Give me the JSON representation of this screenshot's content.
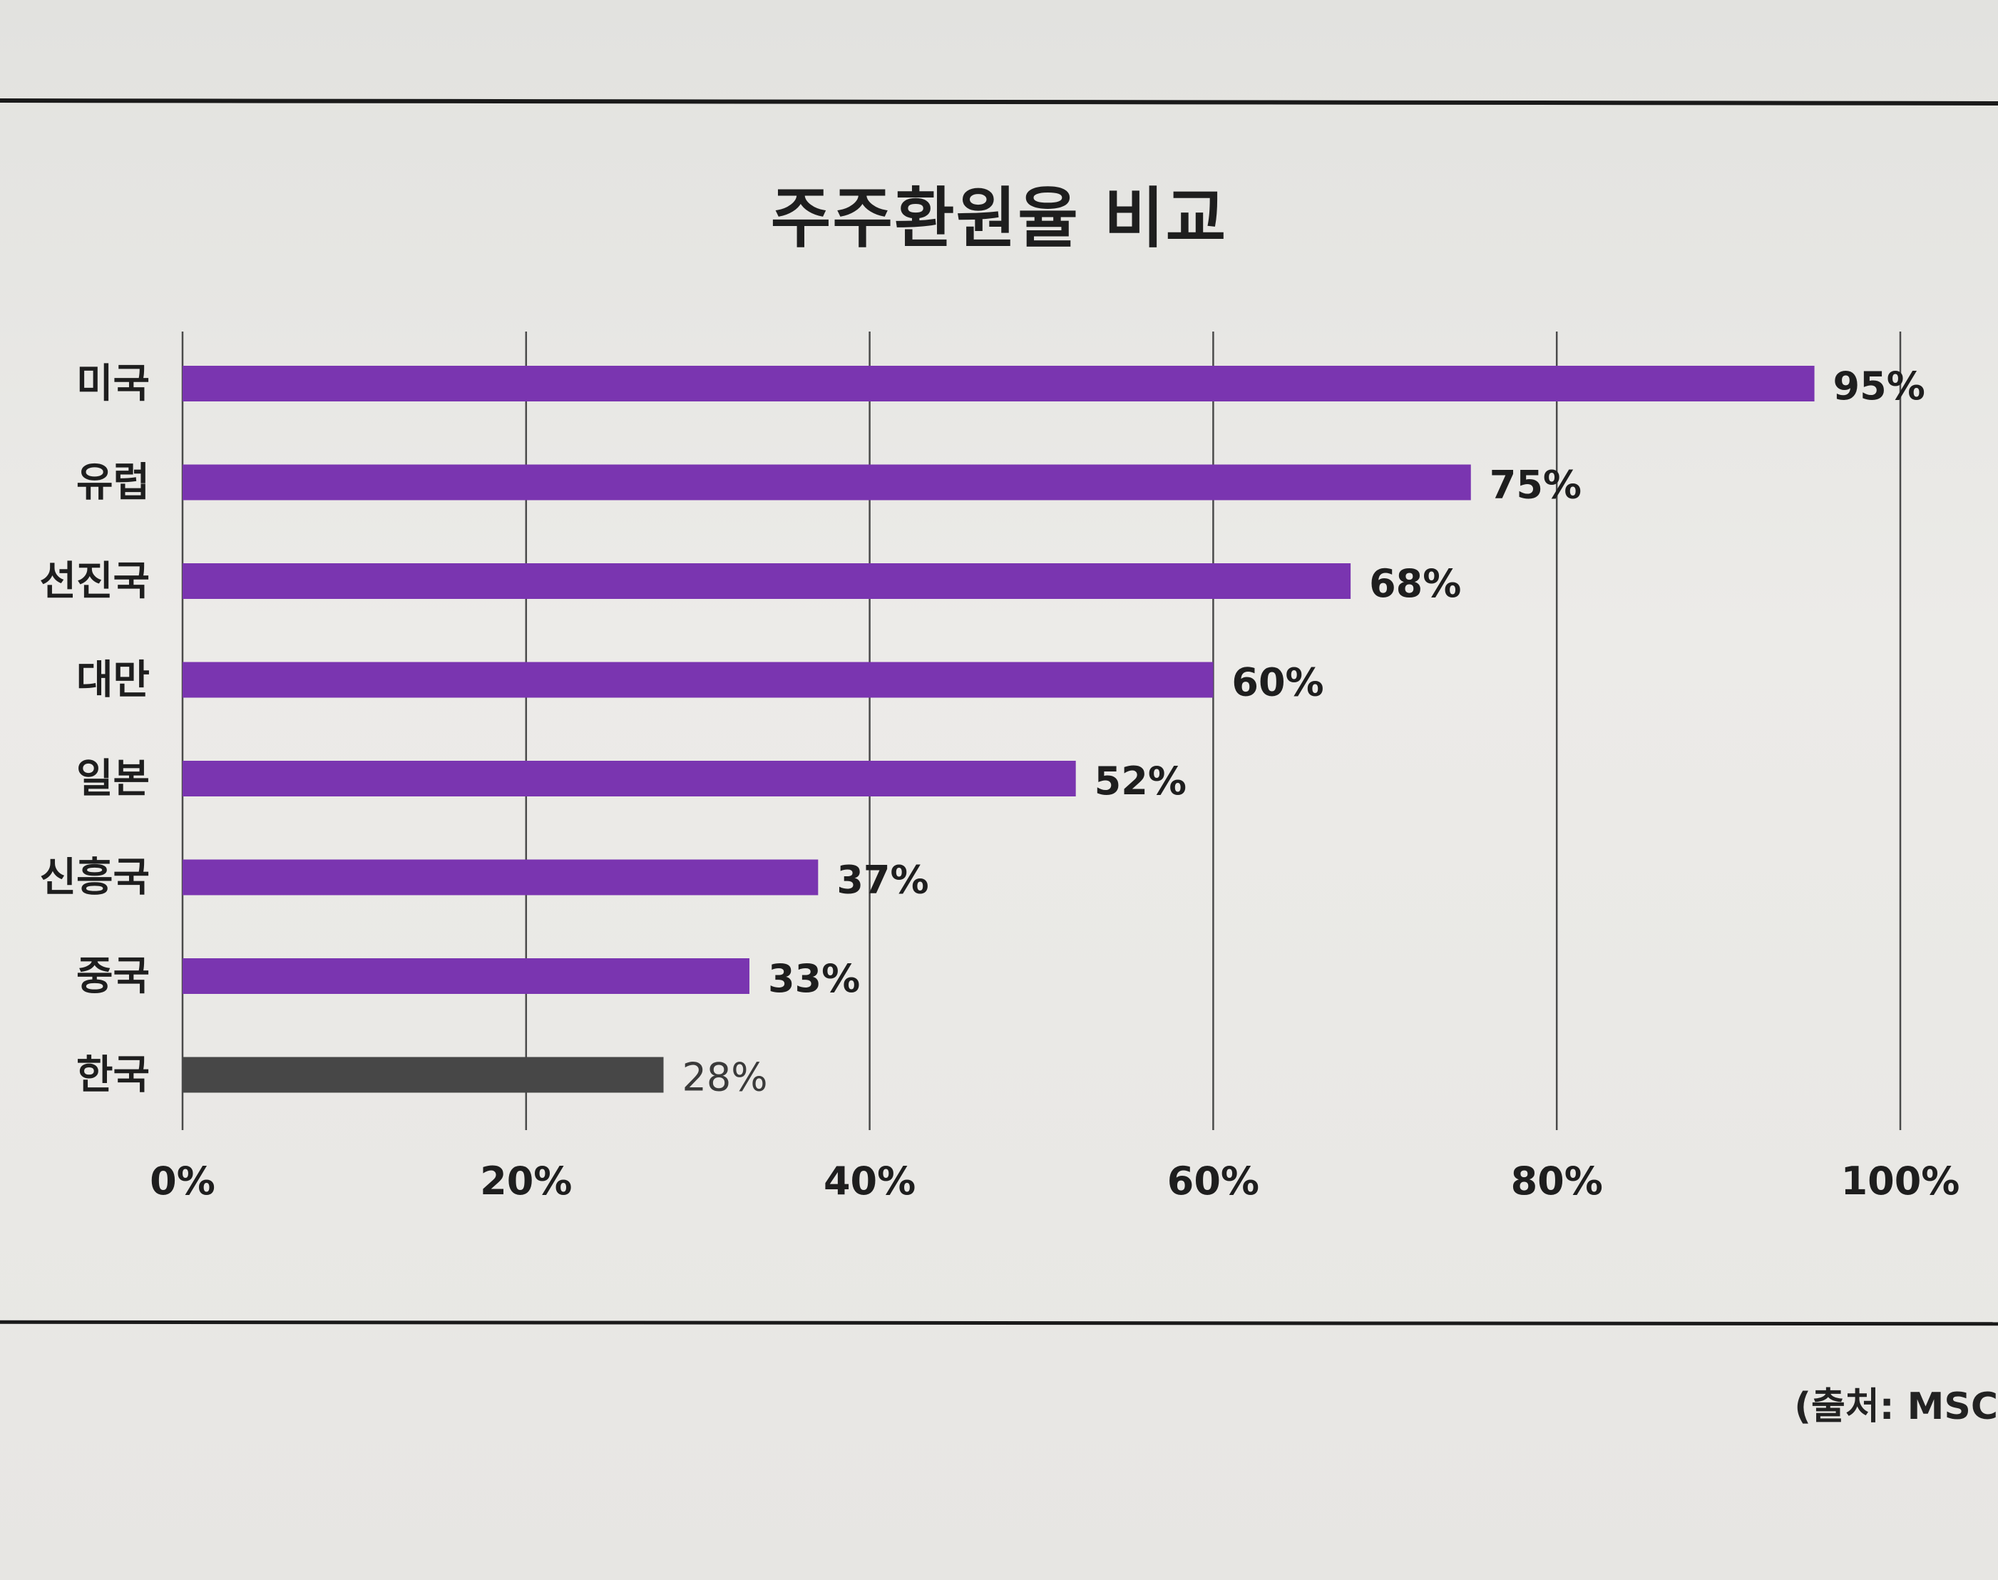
{
  "header": {
    "title": "주주환원율 비교"
  },
  "source": "(출처: MSC",
  "colors": {
    "bar_primary": "#7a35b0",
    "bar_highlight": "#474747",
    "grid": "#4a4a4a",
    "text": "#1e1e1e"
  },
  "chart_data": {
    "type": "bar",
    "orientation": "horizontal",
    "title": "주주환원율 비교",
    "categories": [
      "미국",
      "유럽",
      "선진국",
      "대만",
      "일본",
      "신흥국",
      "중국",
      "한국"
    ],
    "values": [
      95,
      75,
      68,
      60,
      52,
      37,
      33,
      28
    ],
    "value_labels": [
      "95%",
      "75%",
      "68%",
      "60%",
      "52%",
      "37%",
      "33%",
      "28%"
    ],
    "highlight_category": "한국",
    "xlim": [
      0,
      100
    ],
    "xticks": [
      0,
      20,
      40,
      60,
      80,
      100
    ],
    "xtick_labels": [
      "0%",
      "20%",
      "40%",
      "60%",
      "80%",
      "100%"
    ],
    "grid": "vertical",
    "legend": "none"
  }
}
